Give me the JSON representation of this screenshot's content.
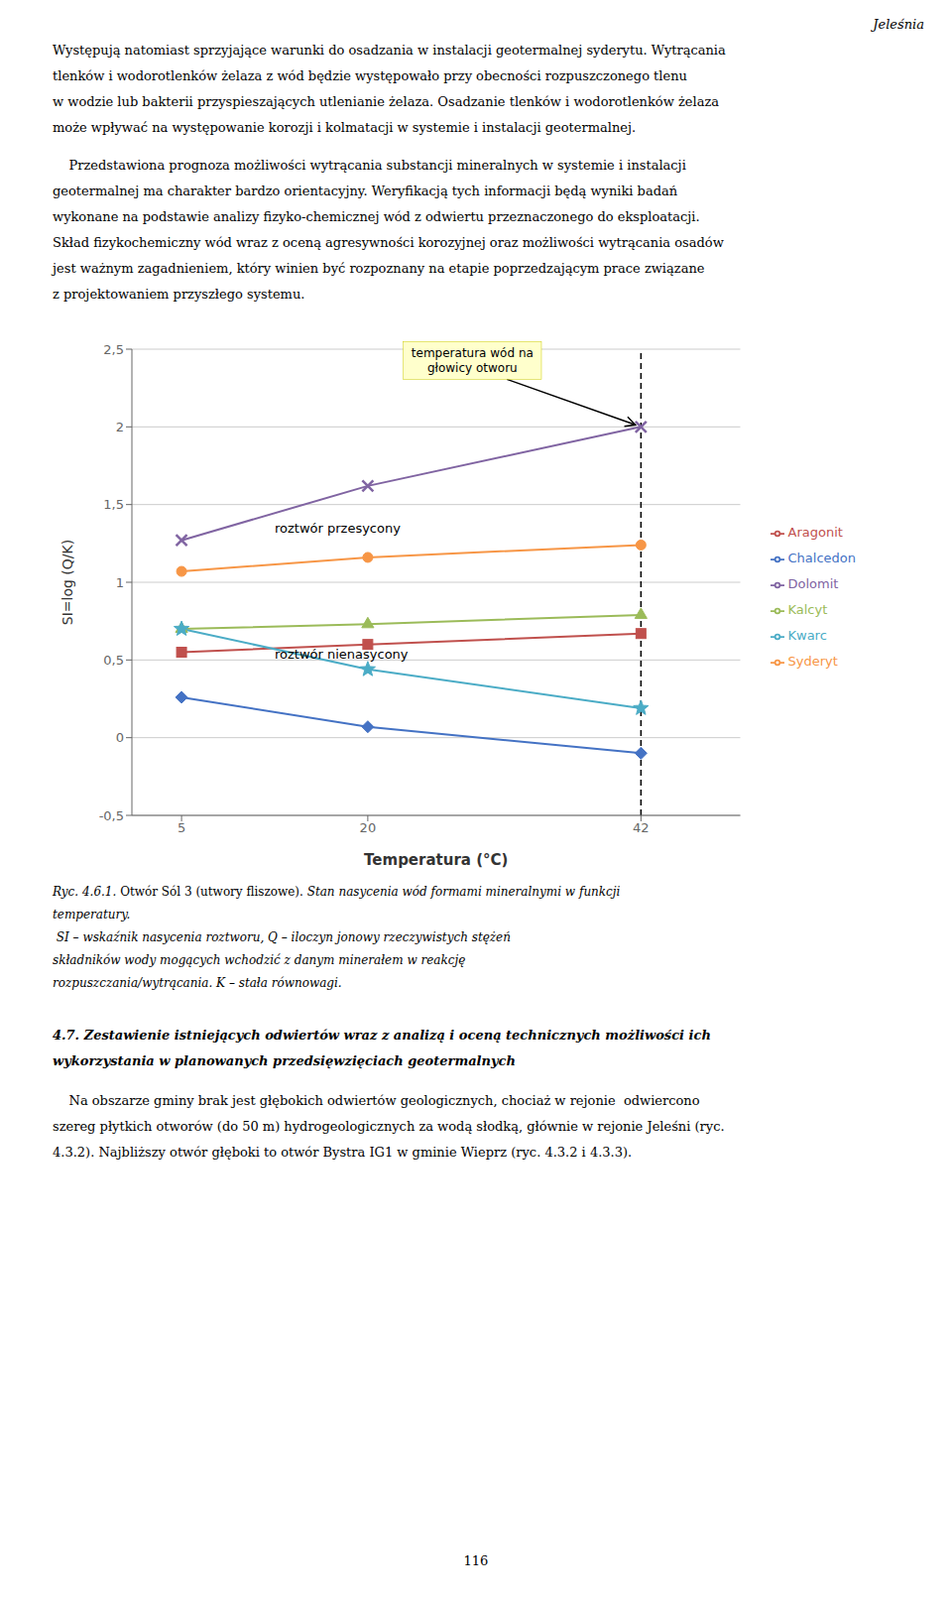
{
  "chart_data": {
    "type": "line",
    "x_label": "Temperatura (°C)",
    "y_label": "SI=log (Q/K)",
    "x": [
      5,
      20,
      42
    ],
    "xlim": [
      1,
      50
    ],
    "xticks": [
      5,
      20,
      42
    ],
    "ylim": [
      -0.5,
      2.5
    ],
    "yticks": [
      {
        "value": -0.5,
        "label": "-0,5"
      },
      0,
      {
        "value": 0.5,
        "label": "0,5"
      },
      1,
      {
        "value": 1.5,
        "label": "1,5"
      },
      2,
      {
        "value": 2.5,
        "label": "2,5"
      }
    ],
    "grid": "y",
    "legend": "right",
    "series": [
      {
        "name": "Chalcedon",
        "color": "#4472C4",
        "marker": "diamond",
        "values": [
          0.26,
          0.07,
          -0.1
        ]
      },
      {
        "name": "Aragonit",
        "color": "#C0504D",
        "marker": "square",
        "values": [
          0.55,
          0.6,
          0.67
        ]
      },
      {
        "name": "Kalcyt",
        "color": "#9BBB59",
        "marker": "triangle",
        "values": [
          0.7,
          0.73,
          0.79
        ]
      },
      {
        "name": "Dolomit",
        "color": "#8064A2",
        "marker": "x",
        "values": [
          1.27,
          1.62,
          2.0
        ]
      },
      {
        "name": "Kwarc",
        "color": "#4BACC6",
        "marker": "star",
        "values": [
          0.7,
          0.44,
          0.19
        ]
      },
      {
        "name": "Syderyt",
        "color": "#F79646",
        "marker": "circle",
        "values": [
          1.07,
          1.16,
          1.24
        ]
      }
    ],
    "vlines": [
      42
    ],
    "annotations": [
      {
        "text": "temperatura wód na\ngłowicy otworu",
        "x": 42,
        "y": 2.0,
        "arrow": true
      },
      {
        "text": "roztwór przesycony",
        "x": 12.5,
        "y": 1.35
      },
      {
        "text": "roztwór nienasycony",
        "x": 12.5,
        "y": 0.535
      }
    ]
  },
  "page_text": {
    "header": "Jeleśnia",
    "paragraphs": [
      [
        "Występują natomiast sprzyjające warunki do osadzania w instalacji geotermalnej syderytu. Wytrącania",
        "tlenków i wodorotlenków żelaza z wód będzie występowało przy obecności rozpuszczonego tlenu",
        "w wodzie lub bakterii przyspieszających utlenianie żelaza. Osadzanie tlenków i wodorotlenków żelaza",
        "może wpływać na występowanie korozji i kolmatacji w systemie i instalacji geotermalnej."
      ],
      [
        "    Przedstawiona prognoza możliwości wytrącania substancji mineralnych w systemie i instalacji",
        "geotermalnej ma charakter bardzo orientacyjny. Weryfikacją tych informacji będą wyniki badań",
        "wykonane na podstawie analizy fizyko-chemicznej wód z odwiertu przeznaczonego do eksploatacji.",
        "Skład fizykochemiczny wód wraz z oceną agresywności korozyjnej oraz możliwości wytrącania osadów",
        "jest ważnym zagadnieniem, który winien być rozpoznany na etapie poprzedzającym prace związane",
        "z projektowaniem przyszłego systemu."
      ]
    ],
    "caption_first_line": [
      "Ryc. 4.6.1.",
      " Otwór Sól 3 (utwory fliszowe).",
      " Stan nasycenia wód formami mineralnymi w funkcji"
    ],
    "caption_lines": [
      "temperatury.",
      " SI – wskaźnik nasycenia roztworu, Q – iloczyn jonowy rzeczywistych stężeń",
      "składników wody mogących wchodzić z danym minerałem w reakcję",
      "rozpuszczania/wytrącania. K – stała równowagi."
    ],
    "section_header": [
      "4.7. Zestawienie istniejących odwiertów wraz z analizą i oceną technicznych możliwości ich",
      "wykorzystania w planowanych przedsięwzięciach geotermalnych"
    ],
    "bottom_paragraph": [
      "    Na obszarze gminy brak jest głębokich odwiertów geologicznych, chociaż w rejonie  odwiercono",
      "szereg płytkich otworów (do 50 m) hydrogeologicznych za wodą słodką, głównie w rejonie Jeleśni (ryc.",
      "4.3.2). Najbliższy otwór głęboki to otwór Bystra IG1 w gminie Wieprz (ryc. 4.3.2 i 4.3.3)."
    ],
    "page_number": "116"
  }
}
